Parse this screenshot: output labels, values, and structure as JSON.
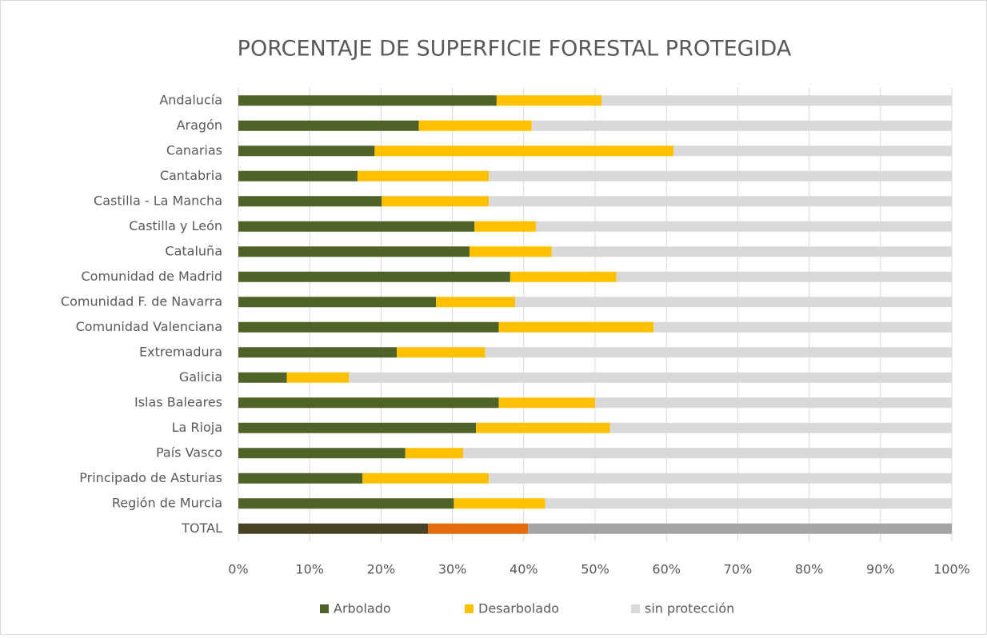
{
  "chart_data": {
    "type": "stacked_barh",
    "title": "PORCENTAJE DE SUPERFICIE FORESTAL PROTEGIDA",
    "categories": [
      "Andalucía",
      "Aragón",
      "Canarias",
      "Cantabria",
      "Castilla - La Mancha",
      "Castilla y León",
      "Cataluña",
      "Comunidad de Madrid",
      "Comunidad F. de Navarra",
      "Comunidad Valenciana",
      "Extremadura",
      "Galicia",
      "Islas Baleares",
      "La Rioja",
      "País Vasco",
      "Principado de Asturias",
      "Región de Murcia",
      "TOTAL"
    ],
    "series": [
      {
        "name": "Arbolado",
        "color": "#4f6228",
        "point_colors": {
          "17": "#4a4227"
        },
        "values": [
          36.2,
          25.3,
          19.1,
          16.7,
          20.1,
          33.1,
          32.4,
          38.1,
          27.7,
          36.5,
          22.2,
          6.8,
          36.5,
          33.3,
          23.4,
          17.4,
          30.2,
          26.6
        ]
      },
      {
        "name": "Desarbolado",
        "color": "#ffc000",
        "point_colors": {
          "17": "#e46c0a"
        },
        "values": [
          14.7,
          15.8,
          41.9,
          18.4,
          15.0,
          8.6,
          11.5,
          14.9,
          11.1,
          21.7,
          12.4,
          8.7,
          13.5,
          18.8,
          8.1,
          17.7,
          12.8,
          14.0
        ]
      },
      {
        "name": "sin protección",
        "color": "#d9d9d9",
        "point_colors": {
          "17": "#a5a5a5"
        },
        "values": [
          49.1,
          58.9,
          39.0,
          64.9,
          64.9,
          58.3,
          56.1,
          47.0,
          61.2,
          41.8,
          65.4,
          84.5,
          50.0,
          47.9,
          68.5,
          64.9,
          57.0,
          59.4
        ]
      }
    ],
    "xlim": [
      0,
      100
    ],
    "xticks": [
      {
        "value": 0,
        "label": "0%"
      },
      {
        "value": 10,
        "label": "10%"
      },
      {
        "value": 20,
        "label": "20%"
      },
      {
        "value": 30,
        "label": "30%"
      },
      {
        "value": 40,
        "label": "40%"
      },
      {
        "value": 50,
        "label": "50%"
      },
      {
        "value": 60,
        "label": "60%"
      },
      {
        "value": 70,
        "label": "70%"
      },
      {
        "value": 80,
        "label": "80%"
      },
      {
        "value": 90,
        "label": "90%"
      },
      {
        "value": 100,
        "label": "100%"
      }
    ],
    "grid": true,
    "legend": "bottom"
  }
}
